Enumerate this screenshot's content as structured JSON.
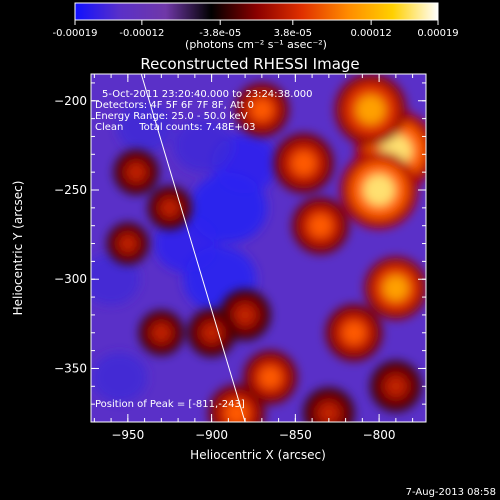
{
  "colorbar": {
    "tick_labels": [
      "-0.00019",
      "-0.00012",
      "-3.8e-05",
      "3.8e-05",
      "0.00012",
      "0.00019"
    ],
    "tick_values": [
      -0.00019,
      -0.00012,
      -3.8e-05,
      3.8e-05,
      0.00012,
      0.00019
    ],
    "unit_label": "(photons cm⁻² s⁻¹ asec⁻²)",
    "range": [
      -0.00019,
      0.00019
    ],
    "colors": [
      "#1010ff",
      "#5a30c8",
      "#7038a8",
      "#000000",
      "#8a0000",
      "#e03000",
      "#ff8a00",
      "#ffd000",
      "#ffffff"
    ]
  },
  "chart_data": {
    "type": "heatmap",
    "title": "Reconstructed RHESSI Image",
    "xlabel": "Heliocentric X (arcsec)",
    "ylabel": "Heliocentric Y (arcsec)",
    "xlim": [
      -972,
      -772
    ],
    "ylim": [
      -380,
      -185
    ],
    "x_ticks": [
      -950,
      -900,
      -850,
      -800
    ],
    "y_ticks": [
      -350,
      -300,
      -250,
      -200
    ],
    "x_tick_labels": [
      "−950",
      "−900",
      "−850",
      "−800"
    ],
    "y_tick_labels": [
      "−350",
      "−300",
      "−250",
      "−200"
    ],
    "annotations": [
      "5-Oct-2011 23:20:40.000 to 23:24:38.000",
      "Detectors: 4F 5F 6F 7F 8F, Att 0",
      "Energy Range: 25.0 - 50.0 keV",
      "Clean     Total counts: 7.48E+03"
    ],
    "peak_label": "Position of Peak = [-811,-243]",
    "peak": [
      -811,
      -243
    ],
    "limb": [
      [
        -942,
        -185
      ],
      [
        -880,
        -380
      ]
    ],
    "bright_sources": [
      {
        "x": -790,
        "y": -228,
        "level": 0.9
      },
      {
        "x": -800,
        "y": -250,
        "level": 0.85
      },
      {
        "x": -805,
        "y": -205,
        "level": 0.75
      },
      {
        "x": -790,
        "y": -305,
        "level": 0.6
      },
      {
        "x": -815,
        "y": -330,
        "level": 0.5
      },
      {
        "x": -845,
        "y": -235,
        "level": 0.55
      },
      {
        "x": -835,
        "y": -270,
        "level": 0.5
      },
      {
        "x": -870,
        "y": -205,
        "level": 0.45
      },
      {
        "x": -880,
        "y": -320,
        "level": 0.4
      },
      {
        "x": -865,
        "y": -355,
        "level": 0.45
      },
      {
        "x": -900,
        "y": -330,
        "level": 0.35
      },
      {
        "x": -930,
        "y": -330,
        "level": 0.3
      },
      {
        "x": -945,
        "y": -240,
        "level": 0.3
      },
      {
        "x": -925,
        "y": -260,
        "level": 0.28
      },
      {
        "x": -950,
        "y": -280,
        "level": 0.25
      },
      {
        "x": -885,
        "y": -375,
        "level": 0.5
      },
      {
        "x": -830,
        "y": -375,
        "level": 0.4
      },
      {
        "x": -790,
        "y": -360,
        "level": 0.4
      }
    ],
    "dark_sources": [
      {
        "x": -890,
        "y": -260,
        "level": 0.95
      },
      {
        "x": -895,
        "y": -300,
        "level": 0.85
      },
      {
        "x": -880,
        "y": -235,
        "level": 0.7
      },
      {
        "x": -915,
        "y": -280,
        "level": 0.65
      },
      {
        "x": -905,
        "y": -225,
        "level": 0.55
      },
      {
        "x": -940,
        "y": -215,
        "level": 0.45
      },
      {
        "x": -960,
        "y": -300,
        "level": 0.5
      },
      {
        "x": -955,
        "y": -355,
        "level": 0.45
      }
    ]
  },
  "footer": {
    "timestamp": "7-Aug-2013 08:58"
  }
}
